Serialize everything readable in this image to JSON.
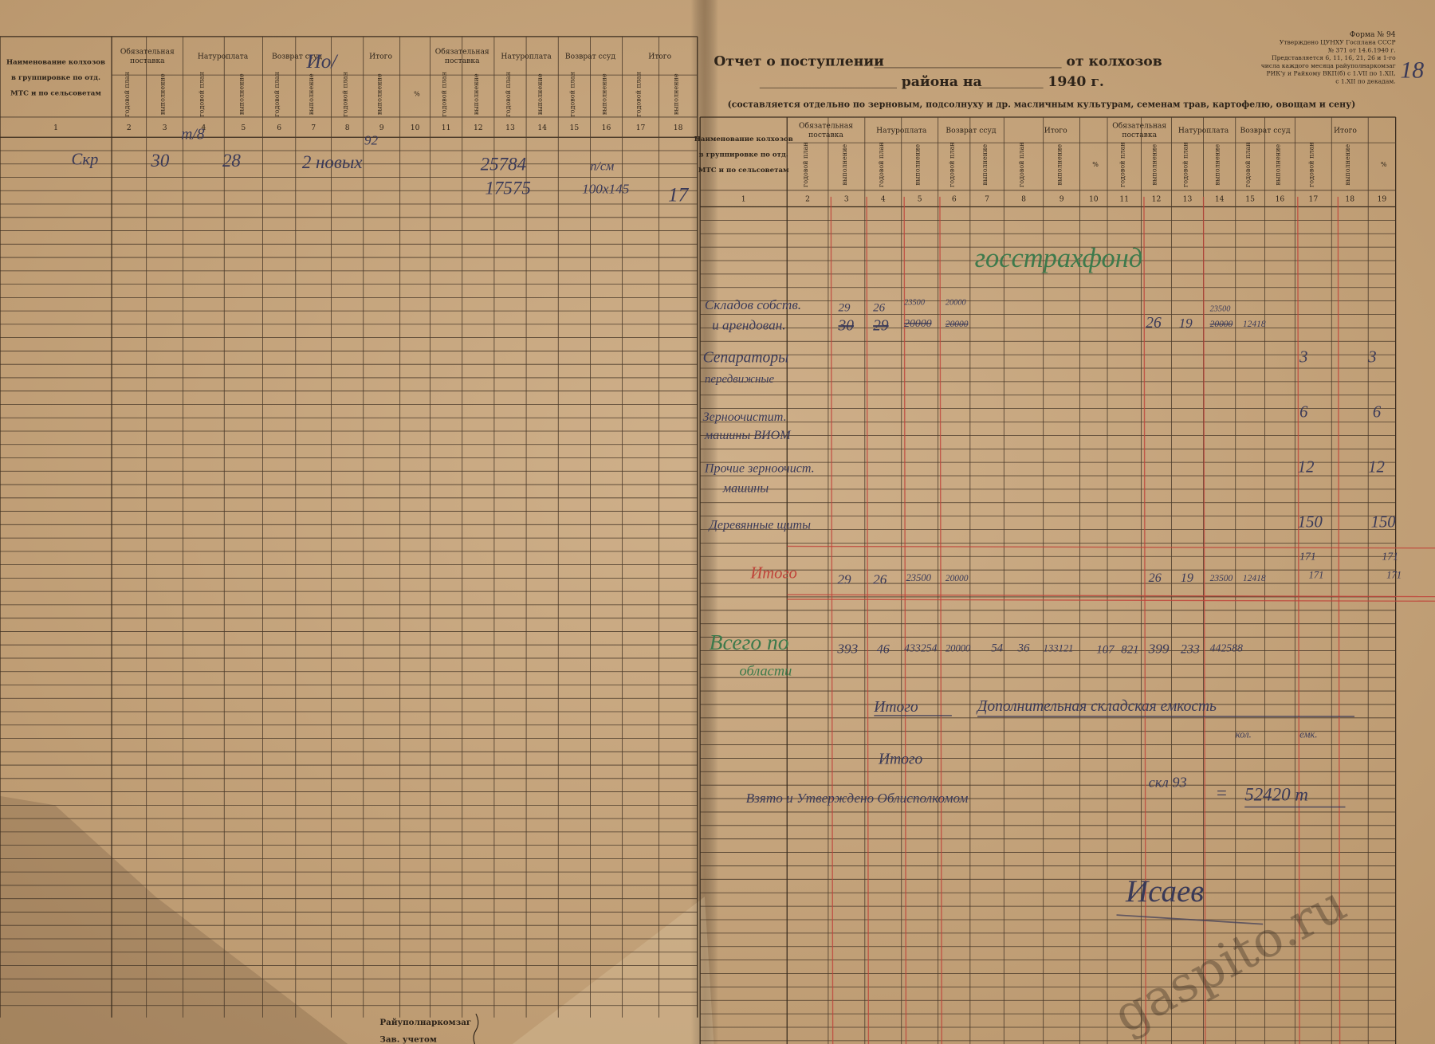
{
  "form_stamp": [
    "Форма № 94",
    "Утверждено ЦУНХУ Госплана СССР",
    "№ 371 от 14.6.1940 г.",
    "Представляется 6, 11, 16, 21, 26 и 1-го",
    "числа каждого месяца райуполнаркомзаг",
    "РИК'у и Райкому ВКП(б) с 1.VII по 1.XII,",
    "с 1.XII по декадам."
  ],
  "report_title": {
    "part1": "Отчет о поступлении",
    "part2": "от колхозов",
    "part3": "района на",
    "part4": "1940 г.",
    "note": "(составляется отдельно по зерновым, подсолнуху и др. масличным культурам, семенам трав, картофелю, овощам и сену)"
  },
  "left_table": {
    "name_header": [
      "Наименование колхозов",
      "в группировке по отд.",
      "МТС и по сельсоветам"
    ],
    "groups": [
      [
        "Обязательная",
        "поставка"
      ],
      [
        "Натуроплата"
      ],
      [
        "Возврат ссуд"
      ],
      [
        "Итого"
      ],
      [
        "Обязательная",
        "поставка"
      ],
      [
        "Натуроплата"
      ],
      [
        "Возврат ссуд"
      ],
      [
        "Итого"
      ]
    ],
    "subheaders": [
      "годовой план",
      "выполнение",
      "годовой план",
      "выполнение",
      "годовой план",
      "выполнение",
      "годовой план",
      "выполнение",
      "%",
      "годовой план",
      "выполнение",
      "годовой план",
      "выполнение",
      "годовой план",
      "выполнение",
      "годовой план",
      "выполнение"
    ],
    "column_numbers": [
      1,
      2,
      3,
      4,
      5,
      6,
      7,
      8,
      9,
      10,
      11,
      12,
      13,
      14,
      15,
      16,
      17,
      18
    ]
  },
  "right_table": {
    "name_header": [
      "Наименование колхозов",
      "в группировке по отд.",
      "МТС и по сельсоветам"
    ],
    "groups": [
      [
        "Обязательная",
        "поставка"
      ],
      [
        "Натуроплата"
      ],
      [
        "Возврат ссуд"
      ],
      [
        "Итого"
      ],
      [
        "Обязательная",
        "поставка"
      ],
      [
        "Натуроплата"
      ],
      [
        "Возврат ссуд"
      ],
      [
        "Итого"
      ]
    ],
    "subheaders": [
      "годовой план",
      "выполнение",
      "годовой план",
      "выполнение",
      "годовой план",
      "выполнение",
      "годовой план",
      "выполнение",
      "%",
      "годовой план",
      "выполнение",
      "годовой план",
      "выполнение",
      "годовой план",
      "выполнение",
      "годовой план",
      "выполнение",
      "%"
    ],
    "column_numbers": [
      1,
      2,
      3,
      4,
      5,
      6,
      7,
      8,
      9,
      10,
      11,
      12,
      13,
      14,
      15,
      16,
      17,
      18,
      19
    ]
  },
  "handwriting_left": [
    "Скр",
    "30",
    "28",
    "2 новых",
    "25784",
    "17575",
    "п/см",
    "100х145",
    "17",
    "т/8",
    "92",
    "Ио/"
  ],
  "handwriting_right": [
    "госстрахфонд",
    "18",
    "Складов собств.",
    "и арендован.",
    "29",
    "26",
    "23500",
    "20000",
    "30",
    "29",
    "20000",
    "20000",
    "26",
    "19",
    "23500",
    "20000",
    "12418",
    "Сепараторы",
    "передвижные",
    "3",
    "3",
    "Зерноочистит.",
    "машины ВИОМ",
    "6",
    "6",
    "Прочие зерноочист.",
    "машины",
    "12",
    "12",
    "Деревянные щиты",
    "150",
    "150",
    "171",
    "171",
    "Итого",
    "29",
    "26",
    "23500",
    "20000",
    "26",
    "19",
    "23500",
    "12418",
    "171",
    "171",
    "Всего по",
    "области",
    "393",
    "46",
    "433254",
    "20000",
    "54",
    "36",
    "133121",
    "107",
    "821",
    "399",
    "233",
    "442588",
    "Итого",
    "Дополнительная складская емкость",
    "кол.",
    "емк.",
    "Итого",
    "Взято и Утверждено Облисполкомом",
    "скл 93",
    "=",
    "52420 т",
    "Исаев"
  ],
  "footer": [
    "Райуполнаркомзаг",
    "Зав. учетом"
  ],
  "watermark": "gaspito.ru"
}
